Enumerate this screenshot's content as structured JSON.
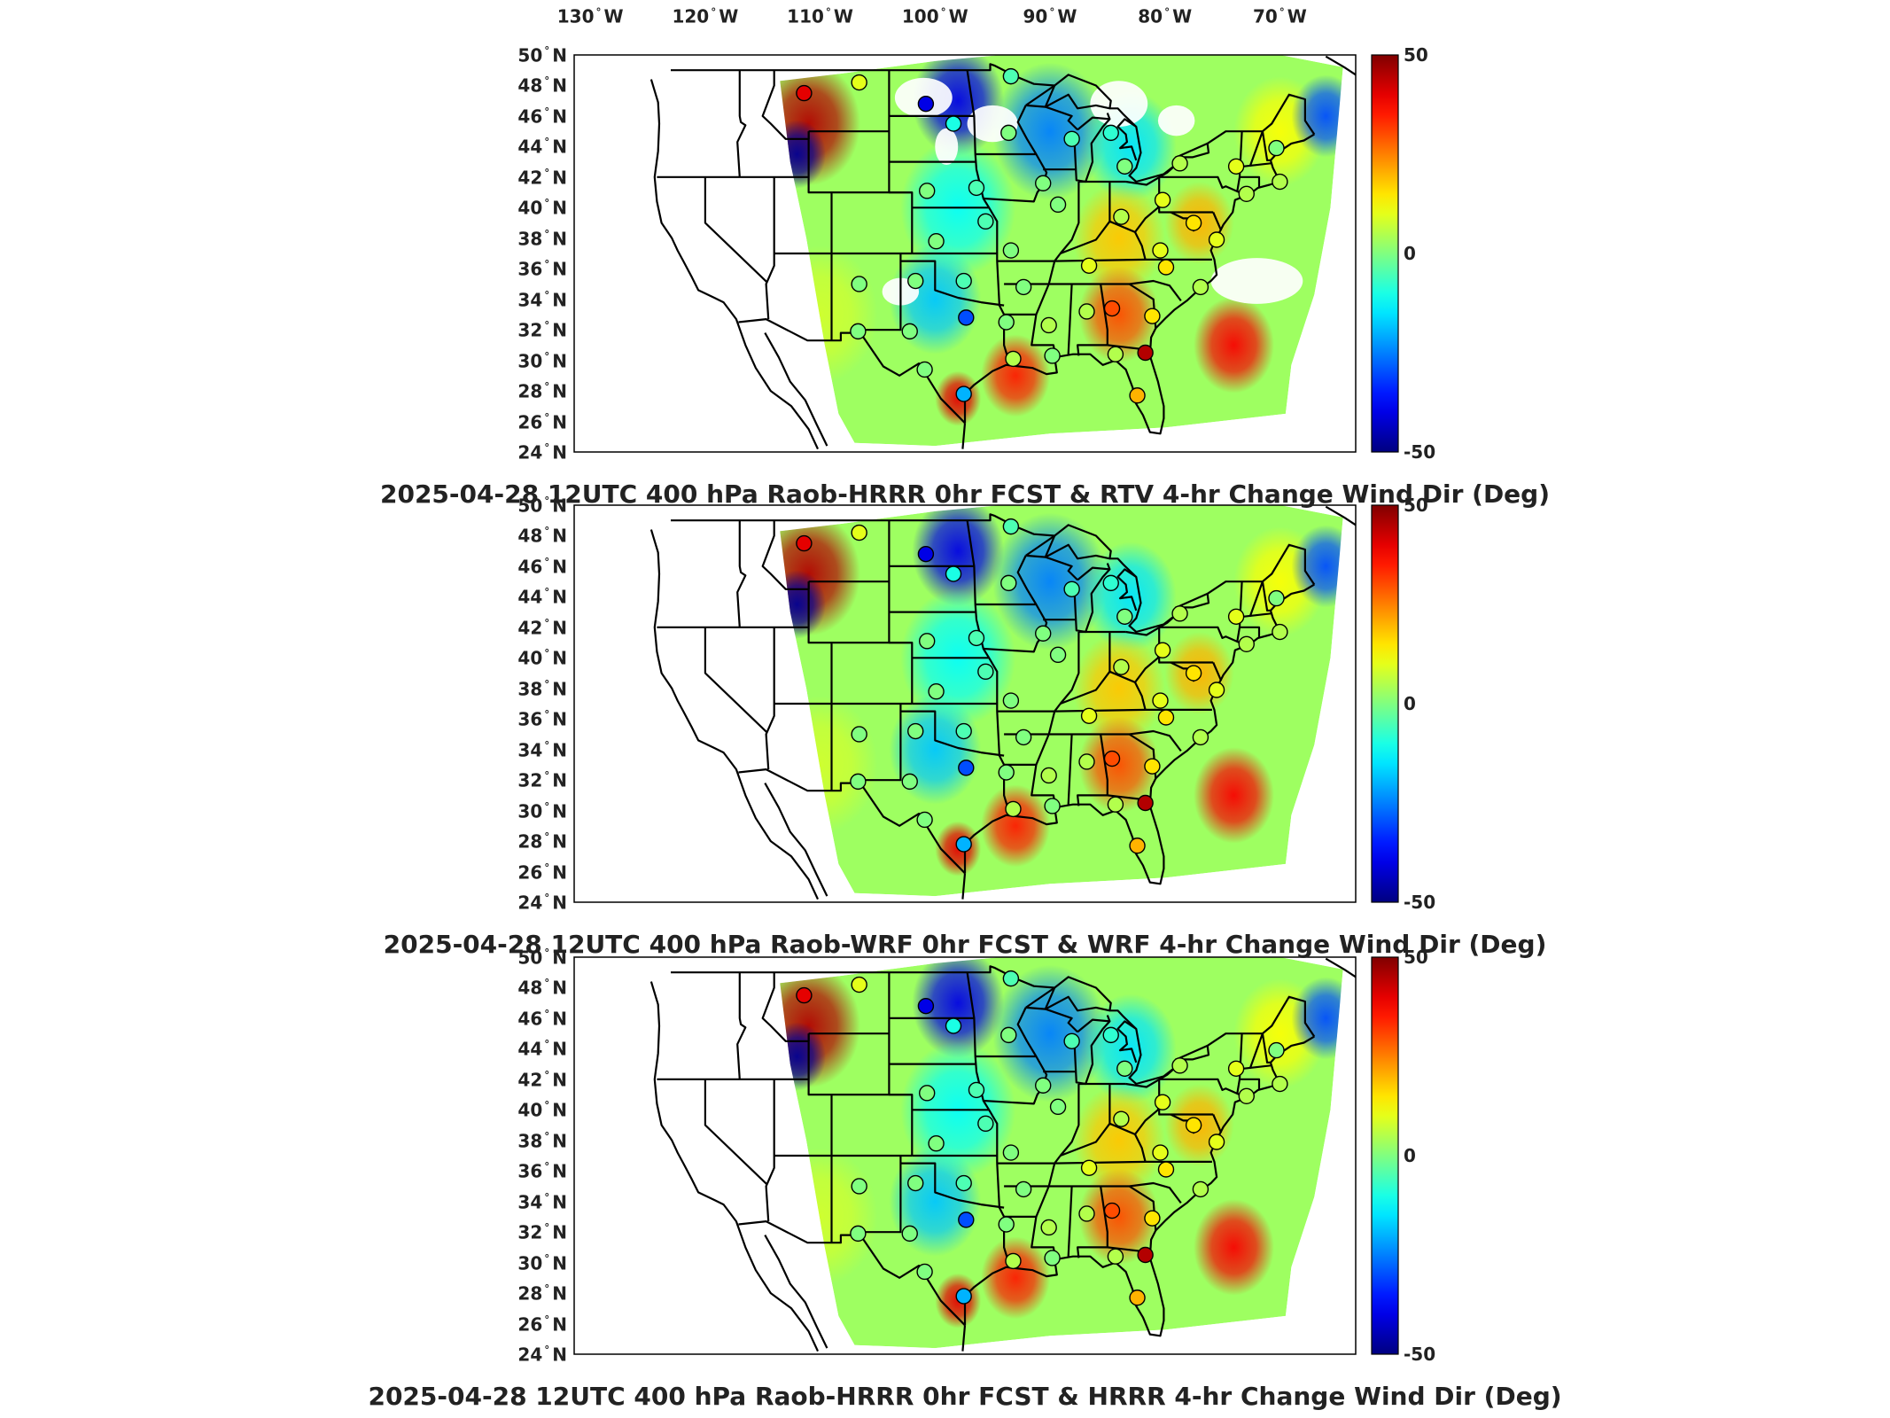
{
  "figure": {
    "longitude_ticks": [
      "130",
      "120",
      "110",
      "100",
      "90",
      "80",
      "70"
    ],
    "longitude_hemisphere": "W",
    "latitude_ticks": [
      "50",
      "48",
      "46",
      "44",
      "42",
      "40",
      "38",
      "36",
      "34",
      "32",
      "30",
      "28",
      "26",
      "24"
    ],
    "latitude_hemisphere": "N",
    "colorbar_ticks": [
      "50",
      "0",
      "-50"
    ],
    "colorbar_range": [
      -50,
      50
    ],
    "colormap": "jet"
  },
  "panels": [
    {
      "title": "2025-04-28 12UTC 400 hPa Raob-HRRR 0hr FCST & RTV 4-hr Change Wind Dir (Deg)",
      "model": "RTV",
      "has_missing_data_gaps": true
    },
    {
      "title": "2025-04-28 12UTC 400 hPa Raob-WRF 0hr FCST & WRF 4-hr Change Wind Dir (Deg)",
      "model": "WRF",
      "has_missing_data_gaps": false
    },
    {
      "title": "2025-04-28 12UTC 400 hPa Raob-HRRR 0hr FCST & HRRR 4-hr Change Wind Dir (Deg)",
      "model": "HRRR",
      "has_missing_data_gaps": false
    }
  ],
  "field_regions": [
    {
      "name": "northern-rockies",
      "lon": -111,
      "lat": 45.5,
      "value": 45,
      "spread": 4.5
    },
    {
      "name": "montana-idaho-trough",
      "lon": -112,
      "lat": 43.5,
      "value": -48,
      "spread": 2.5
    },
    {
      "name": "dakotas",
      "lon": -98,
      "lat": 47,
      "value": -40,
      "spread": 4
    },
    {
      "name": "upper-midwest",
      "lon": -90,
      "lat": 45,
      "value": -25,
      "spread": 5
    },
    {
      "name": "great-lakes-east",
      "lon": -83,
      "lat": 44,
      "value": -15,
      "spread": 4
    },
    {
      "name": "ohio-valley",
      "lon": -84,
      "lat": 38,
      "value": 18,
      "spread": 4
    },
    {
      "name": "southeast",
      "lon": -84,
      "lat": 33,
      "value": 30,
      "spread": 3.5
    },
    {
      "name": "mid-atlantic",
      "lon": -77,
      "lat": 39,
      "value": 20,
      "spread": 3
    },
    {
      "name": "southern-plains",
      "lon": -100,
      "lat": 34,
      "value": -18,
      "spread": 4
    },
    {
      "name": "central-plains",
      "lon": -98,
      "lat": 40,
      "value": -12,
      "spread": 5
    },
    {
      "name": "gulf-coast",
      "lon": -93,
      "lat": 29,
      "value": 35,
      "spread": 3
    },
    {
      "name": "south-texas",
      "lon": -98,
      "lat": 27.5,
      "value": 40,
      "spread": 2
    },
    {
      "name": "atlantic-offshore",
      "lon": -74,
      "lat": 31,
      "value": 38,
      "spread": 3.5
    },
    {
      "name": "new-england",
      "lon": -70,
      "lat": 45,
      "value": 12,
      "spread": 4
    },
    {
      "name": "gulf-of-maine",
      "lon": -66,
      "lat": 46,
      "value": -30,
      "spread": 3
    },
    {
      "name": "arizona",
      "lon": -110,
      "lat": 33,
      "value": 8,
      "spread": 5
    }
  ],
  "raob_stations": [
    {
      "name": "GGW",
      "lon": -106.6,
      "lat": 48.2,
      "value": 10
    },
    {
      "name": "TFX",
      "lon": -111.4,
      "lat": 47.5,
      "value": 40
    },
    {
      "name": "BIS",
      "lon": -100.8,
      "lat": 46.8,
      "value": -40
    },
    {
      "name": "ABR",
      "lon": -98.4,
      "lat": 45.5,
      "value": -10
    },
    {
      "name": "INL",
      "lon": -93.4,
      "lat": 48.6,
      "value": -5
    },
    {
      "name": "MPX",
      "lon": -93.6,
      "lat": 44.9,
      "value": 0
    },
    {
      "name": "GRB",
      "lon": -88.1,
      "lat": 44.5,
      "value": -5
    },
    {
      "name": "APX",
      "lon": -84.7,
      "lat": 44.9,
      "value": -8
    },
    {
      "name": "DTX",
      "lon": -83.5,
      "lat": 42.7,
      "value": 0
    },
    {
      "name": "BUF",
      "lon": -78.7,
      "lat": 42.9,
      "value": 5
    },
    {
      "name": "ALB",
      "lon": -73.8,
      "lat": 42.7,
      "value": 10
    },
    {
      "name": "GYX",
      "lon": -70.3,
      "lat": 43.9,
      "value": 0
    },
    {
      "name": "CHH",
      "lon": -70.0,
      "lat": 41.7,
      "value": 5
    },
    {
      "name": "OKX",
      "lon": -72.9,
      "lat": 40.9,
      "value": 5
    },
    {
      "name": "IAD",
      "lon": -77.5,
      "lat": 39.0,
      "value": 15
    },
    {
      "name": "WAL",
      "lon": -75.5,
      "lat": 37.9,
      "value": 10
    },
    {
      "name": "MHX",
      "lon": -76.9,
      "lat": 34.8,
      "value": 5
    },
    {
      "name": "GSO",
      "lon": -79.9,
      "lat": 36.1,
      "value": 15
    },
    {
      "name": "RNK",
      "lon": -80.4,
      "lat": 37.2,
      "value": 10
    },
    {
      "name": "PIT",
      "lon": -80.2,
      "lat": 40.5,
      "value": 10
    },
    {
      "name": "ILN",
      "lon": -83.8,
      "lat": 39.4,
      "value": 5
    },
    {
      "name": "DVN",
      "lon": -90.6,
      "lat": 41.6,
      "value": 0
    },
    {
      "name": "ILX",
      "lon": -89.3,
      "lat": 40.2,
      "value": 0
    },
    {
      "name": "OAX",
      "lon": -96.4,
      "lat": 41.3,
      "value": -5
    },
    {
      "name": "LBF",
      "lon": -100.7,
      "lat": 41.1,
      "value": 0
    },
    {
      "name": "TOP",
      "lon": -95.6,
      "lat": 39.1,
      "value": -5
    },
    {
      "name": "DDC",
      "lon": -99.9,
      "lat": 37.8,
      "value": 0
    },
    {
      "name": "SGF",
      "lon": -93.4,
      "lat": 37.2,
      "value": 0
    },
    {
      "name": "OUN",
      "lon": -97.5,
      "lat": 35.2,
      "value": -5
    },
    {
      "name": "AMA",
      "lon": -101.7,
      "lat": 35.2,
      "value": 0
    },
    {
      "name": "ABQ",
      "lon": -106.6,
      "lat": 35.0,
      "value": 0
    },
    {
      "name": "EPZ",
      "lon": -106.7,
      "lat": 31.9,
      "value": 0
    },
    {
      "name": "MAF",
      "lon": -102.2,
      "lat": 31.9,
      "value": 0
    },
    {
      "name": "FWD",
      "lon": -97.3,
      "lat": 32.8,
      "value": -30
    },
    {
      "name": "SHV",
      "lon": -93.8,
      "lat": 32.5,
      "value": 0
    },
    {
      "name": "LZK",
      "lon": -92.3,
      "lat": 34.8,
      "value": 0
    },
    {
      "name": "JAN",
      "lon": -90.1,
      "lat": 32.3,
      "value": 5
    },
    {
      "name": "BMX",
      "lon": -86.8,
      "lat": 33.2,
      "value": 5
    },
    {
      "name": "BNA",
      "lon": -86.6,
      "lat": 36.2,
      "value": 10
    },
    {
      "name": "FFC",
      "lon": -84.6,
      "lat": 33.4,
      "value": 30
    },
    {
      "name": "CHS",
      "lon": -81.1,
      "lat": 32.9,
      "value": 15
    },
    {
      "name": "JAX",
      "lon": -81.7,
      "lat": 30.5,
      "value": 45
    },
    {
      "name": "TLH",
      "lon": -84.3,
      "lat": 30.4,
      "value": 5
    },
    {
      "name": "LCH",
      "lon": -93.2,
      "lat": 30.1,
      "value": 5
    },
    {
      "name": "CRP",
      "lon": -97.5,
      "lat": 27.8,
      "value": -20
    },
    {
      "name": "DRT",
      "lon": -100.9,
      "lat": 29.4,
      "value": 0
    },
    {
      "name": "TBW",
      "lon": -82.4,
      "lat": 27.7,
      "value": 20
    },
    {
      "name": "LIX",
      "lon": -89.8,
      "lat": 30.3,
      "value": 0
    }
  ]
}
